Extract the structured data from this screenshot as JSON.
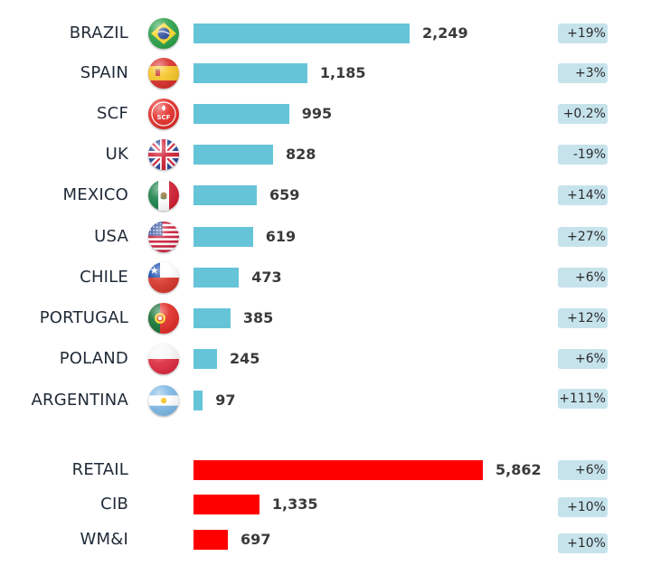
{
  "chart_data": [
    {
      "type": "bar",
      "orientation": "horizontal",
      "categories": [
        "BRAZIL",
        "SPAIN",
        "SCF",
        "UK",
        "MEXICO",
        "USA",
        "CHILE",
        "PORTUGAL",
        "POLAND",
        "ARGENTINA"
      ],
      "values": [
        2249,
        1185,
        995,
        828,
        659,
        619,
        473,
        385,
        245,
        97
      ],
      "value_labels": [
        "2,249",
        "1,185",
        "995",
        "828",
        "659",
        "619",
        "473",
        "385",
        "245",
        "97"
      ],
      "changes": [
        "+19%",
        "+3%",
        "+0.2%",
        "-19%",
        "+14%",
        "+27%",
        "+6%",
        "+12%",
        "+6%",
        "+111%"
      ],
      "flag_icons": [
        "brazil-flag-icon",
        "spain-flag-icon",
        "scf-logo-icon",
        "uk-flag-icon",
        "mexico-flag-icon",
        "usa-flag-icon",
        "chile-flag-icon",
        "portugal-flag-icon",
        "poland-flag-icon",
        "argentina-flag-icon"
      ],
      "scf_logo_text": "SCF",
      "bar_color": "#66c4d8"
    },
    {
      "type": "bar",
      "orientation": "horizontal",
      "categories": [
        "RETAIL",
        "CIB",
        "WM&I"
      ],
      "values": [
        5862,
        1335,
        697
      ],
      "value_labels": [
        "5,862",
        "1,335",
        "697"
      ],
      "changes": [
        "+6%",
        "+10%",
        "+10%"
      ],
      "bar_color": "#ff0000"
    }
  ],
  "colors": {
    "change_badge": "#c6e3ec"
  }
}
